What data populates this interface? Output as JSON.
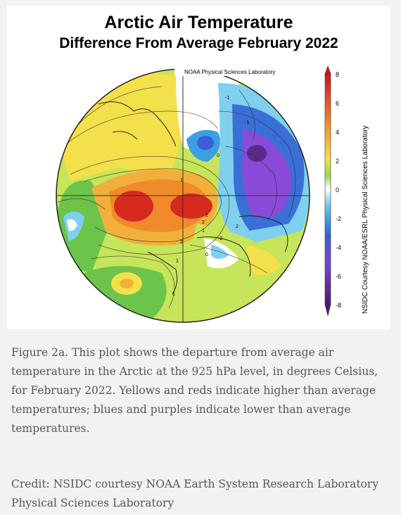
{
  "figure": {
    "title": "Arctic Air Temperature",
    "subtitle": "Difference From Average February 2022",
    "logo_text": "NOAA Physical Sciences Laboratory",
    "side_credit": "NSIDC Courtesy NOAA/ESRL Physical Sciences Laboratory",
    "colorbar_ticks": [
      "8",
      "6",
      "4",
      "2",
      "0",
      "-2",
      "-4",
      "-6",
      "-8"
    ],
    "colors": {
      "deep_red": "#d62a1e",
      "orange": "#f08a2a",
      "yellow": "#f4e04a",
      "yellow_green": "#c6e55a",
      "green": "#6cc44a",
      "white": "#ffffff",
      "light_blue": "#7fd0ee",
      "blue": "#3a6fd8",
      "purple": "#8a4ad8",
      "deep_purple": "#5a2a8a"
    },
    "contour_labels": [
      "-1",
      "-1",
      "0",
      "2",
      "1",
      "1",
      "2",
      "1",
      "1",
      "-2",
      "0",
      "2",
      "2"
    ]
  },
  "caption": {
    "text": "Figure 2a. This plot shows the departure from average air temperature in the Arctic at the 925 hPa level, in degrees Celsius, for February 2022. Yellows and reds indicate higher than average temperatures; blues and purples indicate lower than average temperatures."
  },
  "credit": {
    "text": "Credit: NSIDC courtesy NOAA Earth System Research Laboratory Physical Sciences Laboratory"
  }
}
